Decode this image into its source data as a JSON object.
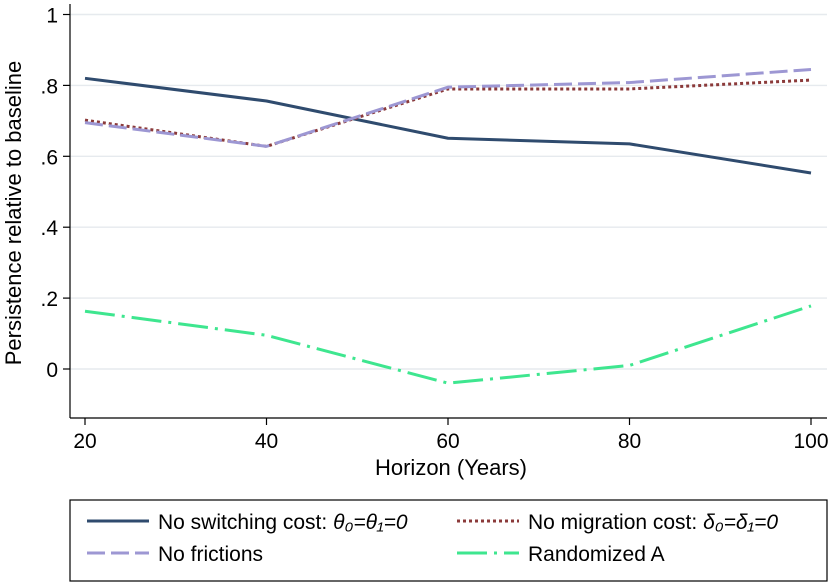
{
  "chart_data": {
    "type": "line",
    "title": "",
    "xlabel": "Horizon (Years)",
    "ylabel": "Persistence relative to baseline",
    "xlim": [
      20,
      100
    ],
    "ylim": [
      -0.14,
      1.02
    ],
    "x": [
      20,
      40,
      60,
      80,
      100
    ],
    "x_ticks": [
      "20",
      "40",
      "60",
      "80",
      "100"
    ],
    "y_tick_values": [
      0,
      0.2,
      0.4,
      0.6,
      0.8,
      1
    ],
    "y_ticks": [
      "0",
      ".2",
      ".4",
      ".6",
      ".8",
      "1"
    ],
    "grid": "horizontal",
    "legend_position": "bottom",
    "series": [
      {
        "key": "no_switching",
        "legend_prefix": "No switching cost: ",
        "legend_math": "θ₀=θ₁=0",
        "values": [
          0.82,
          0.756,
          0.651,
          0.635,
          0.553
        ],
        "color": "#2f4b6e",
        "style": "solid"
      },
      {
        "key": "no_migration",
        "legend_prefix": "No migration cost: ",
        "legend_math": "δ₀=δ₁=0",
        "values": [
          0.702,
          0.628,
          0.79,
          0.79,
          0.815
        ],
        "color": "#8b3a3a",
        "style": "dotted"
      },
      {
        "key": "no_frictions",
        "legend_prefix": "No frictions",
        "legend_math": "",
        "values": [
          0.695,
          0.628,
          0.795,
          0.808,
          0.845
        ],
        "color": "#9d97d3",
        "style": "dashed"
      },
      {
        "key": "randomized_a",
        "legend_prefix": "Randomized A",
        "legend_math": "",
        "values": [
          0.163,
          0.095,
          -0.04,
          0.01,
          0.178
        ],
        "color": "#3ee68f",
        "style": "longdash-dot"
      }
    ]
  }
}
